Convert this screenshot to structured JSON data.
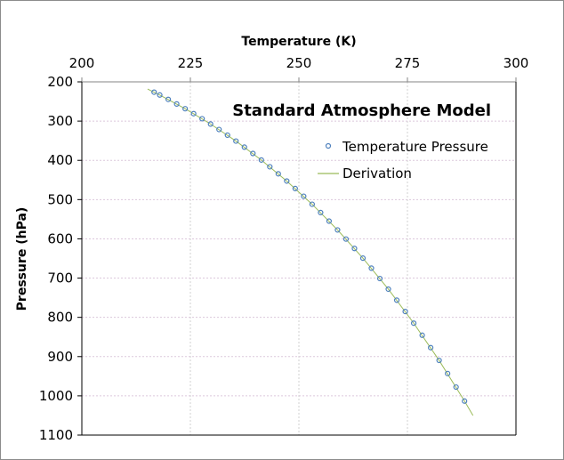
{
  "chart_data": {
    "type": "scatter",
    "title": "Standard Atmosphere Model",
    "xlabel": "Temperature (K)",
    "ylabel": "Pressure (hPa)",
    "xaxis_position": "top",
    "y_inverted": true,
    "xlim": [
      200,
      300
    ],
    "ylim": [
      200,
      1100
    ],
    "xticks": [
      "200",
      "225",
      "250",
      "275",
      "300"
    ],
    "yticks": [
      "200",
      "300",
      "400",
      "500",
      "600",
      "700",
      "800",
      "900",
      "1000",
      "1100"
    ],
    "grid": true,
    "legend_position": "top-right",
    "series": [
      {
        "name": "Temperature Pressure",
        "kind": "markers",
        "color": "#4f81bd",
        "x": [
          288.15,
          286.2,
          284.25,
          282.3,
          280.35,
          278.4,
          276.45,
          274.5,
          272.55,
          270.6,
          268.65,
          266.7,
          264.75,
          262.8,
          260.85,
          258.9,
          256.95,
          255.0,
          253.05,
          251.1,
          249.15,
          247.2,
          245.25,
          243.3,
          241.35,
          239.4,
          237.45,
          235.5,
          233.55,
          231.6,
          229.65,
          227.7,
          225.75,
          223.8,
          221.85,
          219.9,
          217.95,
          216.65
        ],
        "y": [
          1013.3,
          977.7,
          943.2,
          909.7,
          877.2,
          845.6,
          814.9,
          785.1,
          756.3,
          728.2,
          701.1,
          674.7,
          649.2,
          624.5,
          600.5,
          577.3,
          554.8,
          533.0,
          511.9,
          491.5,
          471.8,
          452.7,
          434.3,
          416.4,
          399.2,
          382.5,
          366.4,
          350.9,
          335.9,
          321.4,
          307.4,
          293.9,
          281.0,
          268.4,
          256.4,
          244.7,
          233.5,
          226.3
        ]
      },
      {
        "name": "Derivation",
        "kind": "line",
        "color": "#9bbb59",
        "x": [
          290.1,
          288.15,
          282.3,
          276.45,
          270.6,
          264.75,
          258.9,
          253.05,
          247.2,
          241.35,
          235.5,
          229.65,
          223.8,
          217.95,
          215.15
        ],
        "y": [
          1050.0,
          1013.3,
          909.7,
          814.9,
          728.2,
          649.2,
          577.3,
          511.9,
          452.7,
          399.2,
          350.9,
          307.4,
          268.4,
          233.5,
          218.2
        ]
      }
    ]
  }
}
